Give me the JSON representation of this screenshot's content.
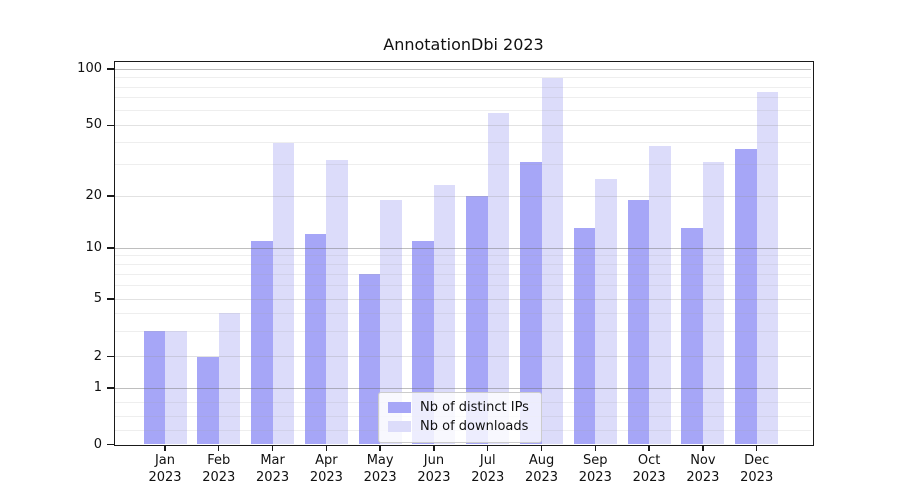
{
  "title": "AnnotationDbi 2023",
  "chart_data": {
    "type": "bar",
    "title": "AnnotationDbi 2023",
    "categories": [
      "Jan",
      "Feb",
      "Mar",
      "Apr",
      "May",
      "Jun",
      "Jul",
      "Aug",
      "Sep",
      "Oct",
      "Nov",
      "Dec"
    ],
    "year_label": "2023",
    "series": [
      {
        "name": "Nb of distinct IPs",
        "color": "#a6a6f7",
        "values": [
          3,
          2,
          11,
          12,
          7,
          11,
          20,
          31,
          13,
          19,
          13,
          37
        ]
      },
      {
        "name": "Nb of downloads",
        "color": "#dcdcfa",
        "values": [
          3,
          4,
          40,
          32,
          19,
          23,
          58,
          90,
          25,
          38,
          31,
          75
        ]
      }
    ],
    "xlabel": "",
    "ylabel": "",
    "yscale": "symlog",
    "ylim": [
      0,
      115
    ],
    "yticks": [
      0,
      1,
      2,
      5,
      10,
      20,
      50,
      100
    ],
    "minor_yticks": [
      0.25,
      0.5,
      0.75,
      3,
      4,
      6,
      7,
      8,
      9,
      30,
      40,
      60,
      70,
      80,
      90
    ],
    "grid": "horizontal, major and minor, drawn over bars",
    "legend_position": "lower center"
  },
  "legend": {
    "items": [
      {
        "label": "Nb of distinct IPs"
      },
      {
        "label": "Nb of downloads"
      }
    ]
  }
}
